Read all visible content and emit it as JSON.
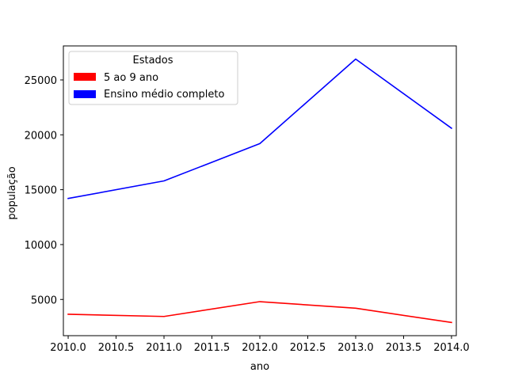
{
  "chart_data": {
    "type": "line",
    "title": "",
    "xlabel": "ano",
    "ylabel": "população",
    "x": [
      2010,
      2011,
      2012,
      2013,
      2014
    ],
    "series": [
      {
        "name": "5 ao 9 ano",
        "color": "#ff0000",
        "values": [
          3650,
          3450,
          4800,
          4200,
          2900
        ]
      },
      {
        "name": "Ensino médio completo",
        "color": "#0000ff",
        "values": [
          14200,
          15800,
          19200,
          26900,
          20600
        ]
      }
    ],
    "xlim": [
      2009.95,
      2014.05
    ],
    "ylim": [
      1700,
      28100
    ],
    "xticks": [
      2010.0,
      2010.5,
      2011.0,
      2011.5,
      2012.0,
      2012.5,
      2013.0,
      2013.5,
      2014.0
    ],
    "xtick_labels": [
      "2010.0",
      "2010.5",
      "2011.0",
      "2011.5",
      "2012.0",
      "2012.5",
      "2013.0",
      "2013.5",
      "2014.0"
    ],
    "yticks": [
      5000,
      10000,
      15000,
      20000,
      25000
    ],
    "ytick_labels": [
      "5000",
      "10000",
      "15000",
      "20000",
      "25000"
    ],
    "grid": false,
    "legend": {
      "title": "Estados",
      "placement": "top-left"
    }
  }
}
